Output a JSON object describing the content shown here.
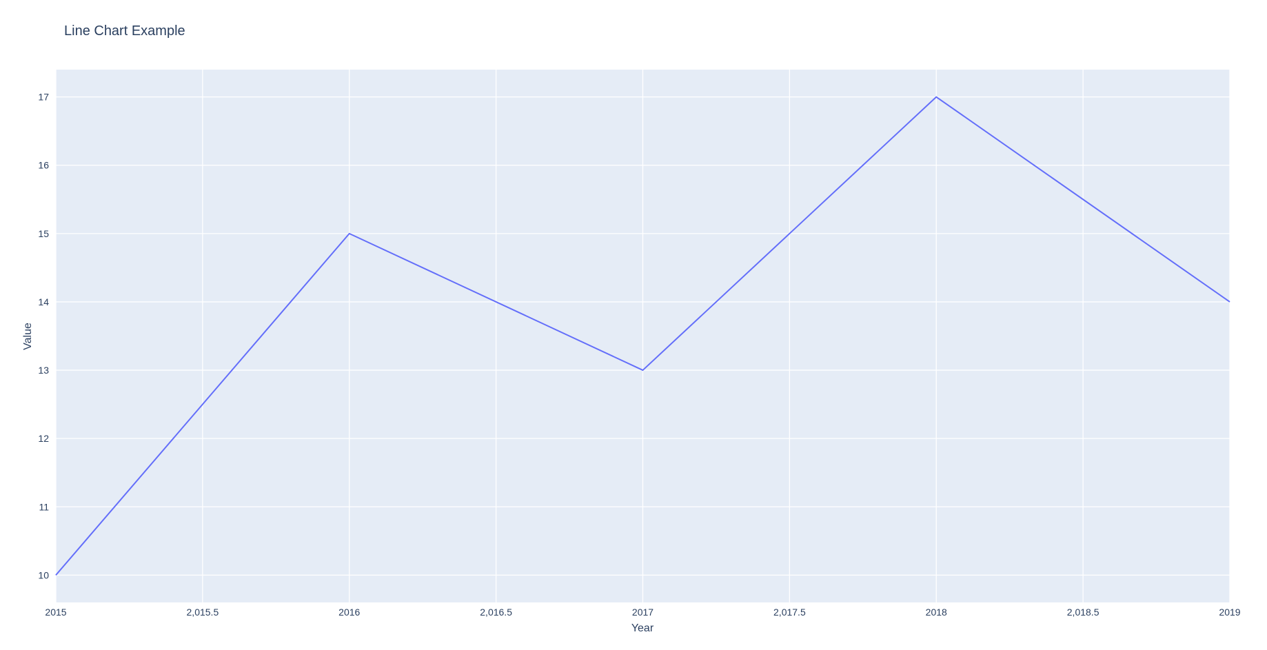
{
  "chart_data": {
    "type": "line",
    "title": "Line Chart Example",
    "xlabel": "Year",
    "ylabel": "Value",
    "x": [
      2015,
      2016,
      2017,
      2018,
      2019
    ],
    "series": [
      {
        "values": [
          10,
          15,
          13,
          17,
          14
        ]
      }
    ],
    "xlim": [
      2015,
      2019
    ],
    "ylim": [
      9.6,
      17.4
    ],
    "x_ticks": [
      2015,
      2015.5,
      2016,
      2016.5,
      2017,
      2017.5,
      2018,
      2018.5,
      2019
    ],
    "x_tick_labels": [
      "2015",
      "2,015.5",
      "2016",
      "2,016.5",
      "2017",
      "2,017.5",
      "2018",
      "2,018.5",
      "2019"
    ],
    "y_ticks": [
      10,
      11,
      12,
      13,
      14,
      15,
      16,
      17
    ],
    "y_tick_labels": [
      "10",
      "11",
      "12",
      "13",
      "14",
      "15",
      "16",
      "17"
    ],
    "grid": true,
    "colors": {
      "plot_background": "#e5ecf6",
      "grid": "#ffffff",
      "line": "#636efa",
      "text": "#2a3f5f"
    }
  }
}
